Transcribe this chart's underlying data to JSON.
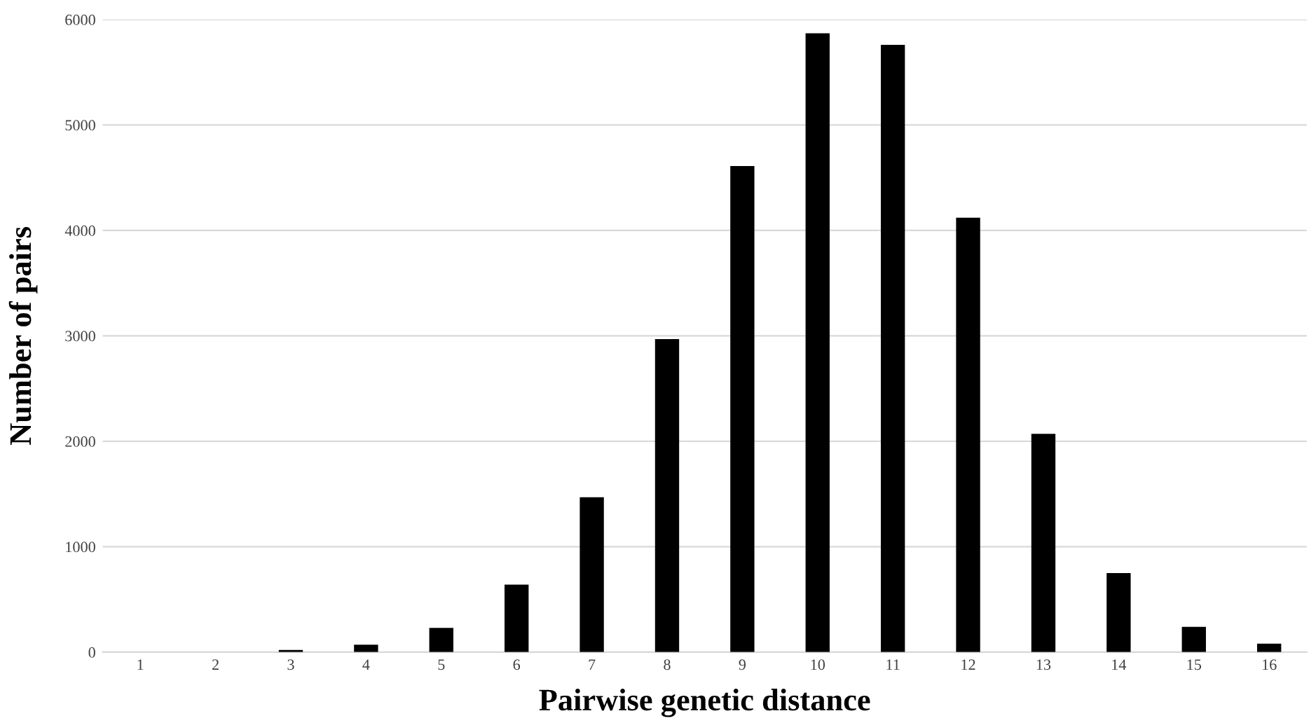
{
  "chart_data": {
    "type": "bar",
    "xlabel": "Pairwise genetic distance",
    "ylabel": "Number of pairs",
    "categories": [
      "1",
      "2",
      "3",
      "4",
      "5",
      "6",
      "7",
      "8",
      "9",
      "10",
      "11",
      "12",
      "13",
      "14",
      "15",
      "16"
    ],
    "values": [
      0,
      0,
      20,
      70,
      230,
      640,
      1470,
      2970,
      4610,
      5870,
      5760,
      4120,
      2070,
      750,
      240,
      80
    ],
    "color": "#000000",
    "ylim": [
      0,
      6000
    ],
    "yticks": [
      0,
      1000,
      2000,
      3000,
      4000,
      5000,
      6000
    ],
    "grid": "y"
  }
}
